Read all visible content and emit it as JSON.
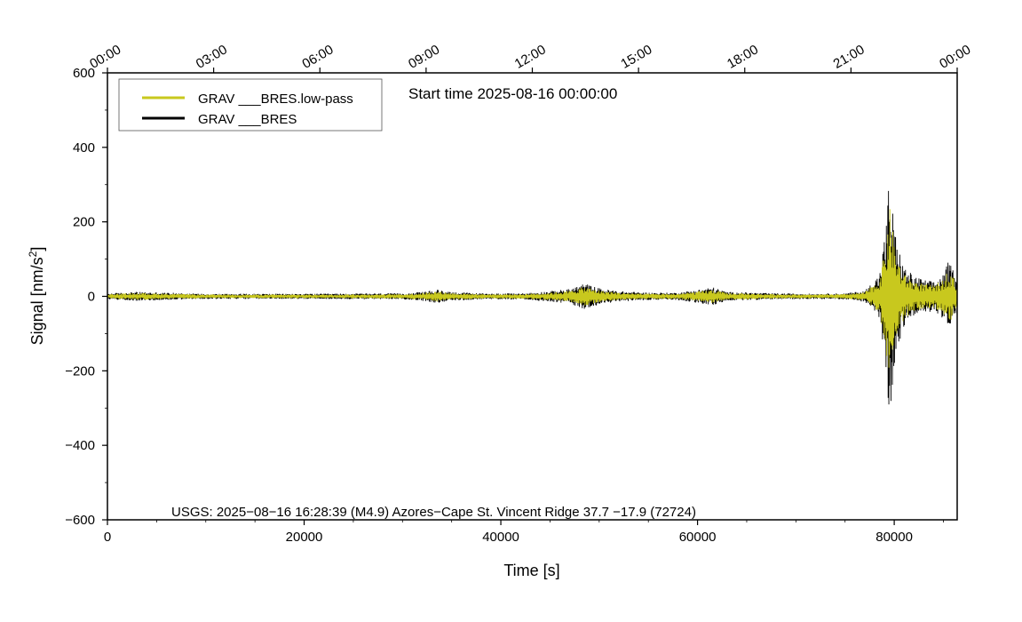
{
  "chart_data": {
    "type": "line",
    "xlabel": "Time [s]",
    "ylabel_main": "Signal [nm/s",
    "ylabel_sup": "2",
    "ylabel_end": "]",
    "xlim": [
      0,
      86400
    ],
    "ylim": [
      -600,
      600
    ],
    "x_ticks": [
      0,
      20000,
      40000,
      60000,
      80000
    ],
    "x_tick_labels": [
      "0",
      "20000",
      "40000",
      "60000",
      "80000"
    ],
    "y_ticks": [
      -600,
      -400,
      -200,
      0,
      200,
      400,
      600
    ],
    "y_tick_labels": [
      "−600",
      "−400",
      "−200",
      "0",
      "200",
      "400",
      "600"
    ],
    "top_axis_ticks": [
      0,
      10800,
      21600,
      32400,
      43200,
      54000,
      64800,
      75600,
      86400
    ],
    "top_axis_labels": [
      "00:00",
      "03:00",
      "06:00",
      "09:00",
      "12:00",
      "15:00",
      "18:00",
      "21:00",
      "00:00"
    ],
    "annotation": "Start time 2025-08-16 00:00:00",
    "event_note": "USGS: 2025−08−16 16:28:39 (M4.9) Azores−Cape St. Vincent Ridge 37.7 −17.9 (72724)",
    "legend_position": "top-left",
    "series": [
      {
        "name": "GRAV ___BRES",
        "color": "#000000",
        "envelope_x": [
          0,
          3000,
          10000,
          20000,
          30000,
          32000,
          33500,
          35000,
          38000,
          42000,
          45000,
          47000,
          48500,
          50000,
          52000,
          55000,
          58000,
          60000,
          61500,
          63000,
          68000,
          72000,
          75000,
          77000,
          78500,
          79200,
          79500,
          79800,
          80200,
          81000,
          82000,
          83000,
          84000,
          85000,
          85500,
          86000,
          86400
        ],
        "envelope_amp": [
          8,
          12,
          7,
          7,
          8,
          12,
          18,
          12,
          8,
          8,
          14,
          20,
          35,
          22,
          14,
          10,
          10,
          18,
          25,
          12,
          8,
          7,
          8,
          15,
          60,
          200,
          340,
          250,
          150,
          80,
          55,
          45,
          40,
          60,
          95,
          70,
          30
        ]
      },
      {
        "name": "GRAV ___BRES.low-pass",
        "color": "#c8c81e",
        "envelope_x": [
          0,
          3000,
          10000,
          20000,
          30000,
          32000,
          33500,
          35000,
          38000,
          42000,
          45000,
          47000,
          48500,
          50000,
          52000,
          55000,
          58000,
          60000,
          61500,
          63000,
          68000,
          72000,
          75000,
          77000,
          78500,
          79200,
          79500,
          79800,
          80200,
          81000,
          82000,
          83000,
          84000,
          85000,
          85500,
          86000,
          86400
        ],
        "envelope_amp": [
          6,
          9,
          5,
          5,
          6,
          9,
          14,
          9,
          6,
          6,
          10,
          15,
          26,
          16,
          10,
          7,
          7,
          13,
          18,
          9,
          6,
          5,
          6,
          11,
          45,
          150,
          250,
          185,
          110,
          60,
          42,
          34,
          30,
          45,
          75,
          55,
          22
        ]
      }
    ]
  },
  "colors": {
    "grav_bres": "#000000",
    "grav_bres_lowpass": "#c8c81e"
  }
}
